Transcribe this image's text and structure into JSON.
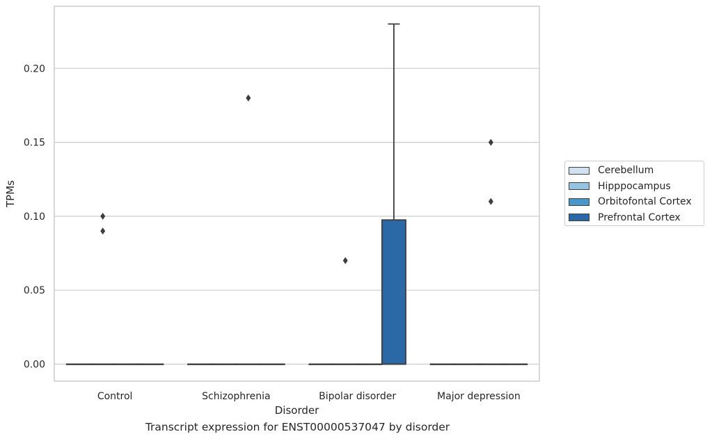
{
  "chart_data": {
    "type": "box",
    "title": "",
    "xlabel": "Disorder",
    "ylabel": "TPMs",
    "caption": "Transcript expression for ENST00000537047 by disorder",
    "categories": [
      "Control",
      "Schizophrenia",
      "Bipolar disorder",
      "Major depression"
    ],
    "yticks": [
      "0.00",
      "0.05",
      "0.10",
      "0.15",
      "0.20"
    ],
    "ylim": [
      -0.011,
      0.242
    ],
    "grid": "horizontal",
    "legend_position": "right",
    "series": [
      {
        "name": "Cerebellum",
        "color": "#d0e1f2",
        "boxes": [
          {
            "q1": 0,
            "median": 0,
            "q3": 0,
            "whisker_low": 0,
            "whisker_high": 0,
            "outliers": []
          },
          {
            "q1": 0,
            "median": 0,
            "q3": 0,
            "whisker_low": 0,
            "whisker_high": 0,
            "outliers": []
          },
          {
            "q1": 0,
            "median": 0,
            "q3": 0,
            "whisker_low": 0,
            "whisker_high": 0,
            "outliers": []
          },
          {
            "q1": 0,
            "median": 0,
            "q3": 0,
            "whisker_low": 0,
            "whisker_high": 0,
            "outliers": []
          }
        ]
      },
      {
        "name": "Hipppocampus",
        "color": "#94c4df",
        "boxes": [
          {
            "q1": 0,
            "median": 0,
            "q3": 0,
            "whisker_low": 0,
            "whisker_high": 0,
            "outliers": [
              0.1,
              0.09
            ]
          },
          {
            "q1": 0,
            "median": 0,
            "q3": 0,
            "whisker_low": 0,
            "whisker_high": 0,
            "outliers": []
          },
          {
            "q1": 0,
            "median": 0,
            "q3": 0,
            "whisker_low": 0,
            "whisker_high": 0,
            "outliers": [
              0.07
            ]
          },
          {
            "q1": 0,
            "median": 0,
            "q3": 0,
            "whisker_low": 0,
            "whisker_high": 0,
            "outliers": []
          }
        ]
      },
      {
        "name": "Orbitofontal Cortex",
        "color": "#4a98c9",
        "boxes": [
          {
            "q1": 0,
            "median": 0,
            "q3": 0,
            "whisker_low": 0,
            "whisker_high": 0,
            "outliers": []
          },
          {
            "q1": 0,
            "median": 0,
            "q3": 0,
            "whisker_low": 0,
            "whisker_high": 0,
            "outliers": [
              0.18
            ]
          },
          {
            "q1": 0,
            "median": 0,
            "q3": 0,
            "whisker_low": 0,
            "whisker_high": 0,
            "outliers": []
          },
          {
            "q1": 0,
            "median": 0,
            "q3": 0,
            "whisker_low": 0,
            "whisker_high": 0,
            "outliers": [
              0.15,
              0.11
            ]
          }
        ]
      },
      {
        "name": "Prefrontal Cortex",
        "color": "#2a68a6",
        "boxes": [
          {
            "q1": 0,
            "median": 0,
            "q3": 0,
            "whisker_low": 0,
            "whisker_high": 0,
            "outliers": []
          },
          {
            "q1": 0,
            "median": 0,
            "q3": 0,
            "whisker_low": 0,
            "whisker_high": 0,
            "outliers": []
          },
          {
            "q1": 0,
            "median": 0,
            "q3": 0.0975,
            "whisker_low": 0,
            "whisker_high": 0.23,
            "outliers": []
          },
          {
            "q1": 0,
            "median": 0,
            "q3": 0,
            "whisker_low": 0,
            "whisker_high": 0,
            "outliers": []
          }
        ]
      }
    ]
  }
}
